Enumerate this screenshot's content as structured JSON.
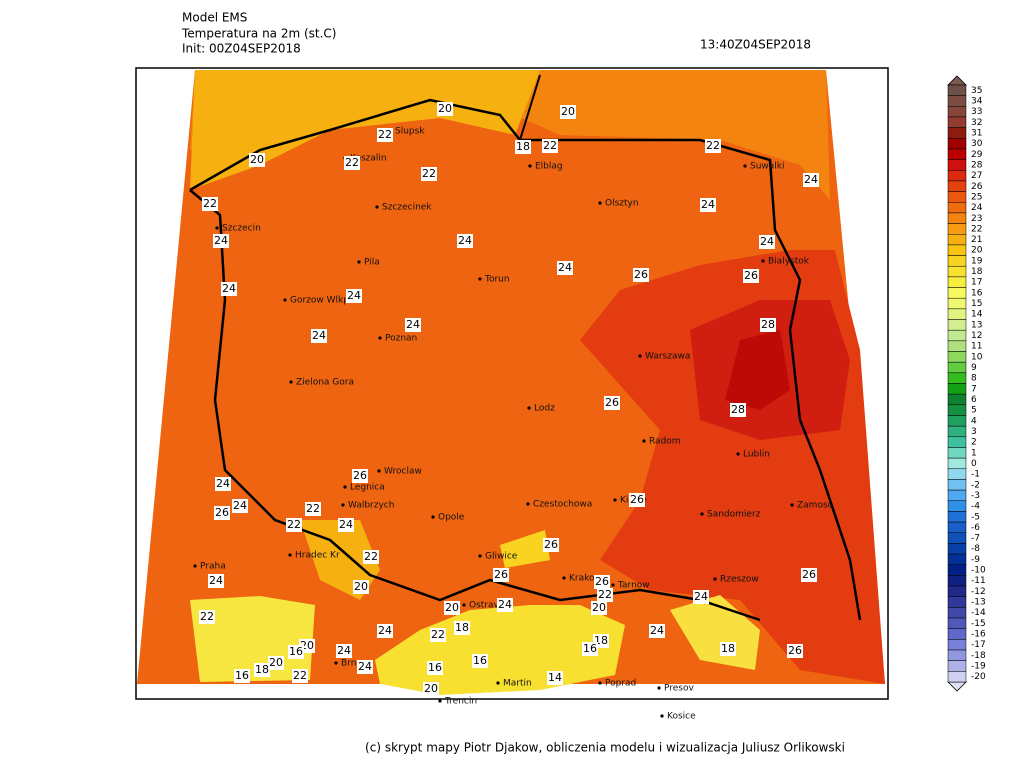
{
  "header": {
    "model": "Model EMS",
    "variable": "Temperatura na 2m (st.C)",
    "init": "Init: 00Z04SEP2018",
    "valid": "13:40Z04SEP2018"
  },
  "colorbar": {
    "levels": [
      35,
      34,
      33,
      32,
      31,
      30,
      29,
      28,
      27,
      26,
      25,
      24,
      23,
      22,
      21,
      20,
      19,
      18,
      17,
      16,
      15,
      14,
      13,
      12,
      11,
      10,
      9,
      8,
      7,
      6,
      5,
      4,
      3,
      2,
      1,
      0,
      -1,
      -2,
      -3,
      -4,
      -5,
      -6,
      -7,
      -8,
      -9,
      -10,
      -11,
      -12,
      -13,
      -14,
      -15,
      -16,
      -17,
      -18,
      -19,
      -20
    ],
    "colors": [
      "#6e5048",
      "#7a4c42",
      "#86463c",
      "#923c32",
      "#8c1c10",
      "#a00000",
      "#bc0000",
      "#d01010",
      "#dc2a10",
      "#e64210",
      "#ec5810",
      "#f06c10",
      "#f38410",
      "#f59c10",
      "#f6b010",
      "#f8c410",
      "#f8d420",
      "#f8e230",
      "#f8ee40",
      "#f8f860",
      "#eef870",
      "#e0f480",
      "#d2ee90",
      "#c2e890",
      "#b0e080",
      "#8ed860",
      "#62cc40",
      "#34bc20",
      "#14a014",
      "#0e8030",
      "#149040",
      "#20a060",
      "#30b080",
      "#40c0a0",
      "#70d8c0",
      "#a0e8e0",
      "#90d8f0",
      "#70c0f0",
      "#50a8f0",
      "#3090e8",
      "#2070d8",
      "#1860c8",
      "#1050b8",
      "#0840a8",
      "#003098",
      "#002088",
      "#102080",
      "#202888",
      "#303898",
      "#4048a8",
      "#5058b8",
      "#6068c8",
      "#7880d8",
      "#9098e0",
      "#b0b0e8",
      "#d0d0f0"
    ]
  },
  "cities": [
    "Slupsk",
    "Koszalin",
    "Elblag",
    "Suwalki",
    "Szczecinek",
    "Olsztyn",
    "Szczecin",
    "Bialystok",
    "Pila",
    "Torun",
    "Gorzow Wlkp",
    "Poznan",
    "Warszawa",
    "Zielona Gora",
    "Lodz",
    "Radom",
    "Lublin",
    "Wroclaw",
    "Legnica",
    "Kielce",
    "Zamosc",
    "Czestochowa",
    "Walbrzych",
    "Opole",
    "Sandomierz",
    "Gliwice",
    "Krakow",
    "Tarnow",
    "Rzeszow",
    "Praha",
    "Hradec Kr",
    "Ostrava",
    "Brno",
    "Trencin",
    "Martin",
    "Poprad",
    "Presov",
    "Kosice"
  ],
  "contour_labels": [
    20,
    20,
    22,
    18,
    22,
    22,
    20,
    22,
    22,
    24,
    22,
    24,
    24,
    24,
    24,
    24,
    26,
    26,
    24,
    24,
    24,
    28,
    24,
    26,
    28,
    26,
    24,
    24,
    26,
    22,
    26,
    22,
    24,
    26,
    22,
    24,
    20,
    26,
    26,
    22,
    20,
    24,
    20,
    24,
    26,
    22,
    24,
    22,
    18,
    24,
    18,
    20,
    16,
    24,
    16,
    18,
    26,
    20,
    24,
    16,
    16,
    18,
    16,
    22,
    14,
    20
  ],
  "footer": "(c) skrypt mapy Piotr Djakow, obliczenia modelu i wizualizacja Juliusz Orlikowski"
}
